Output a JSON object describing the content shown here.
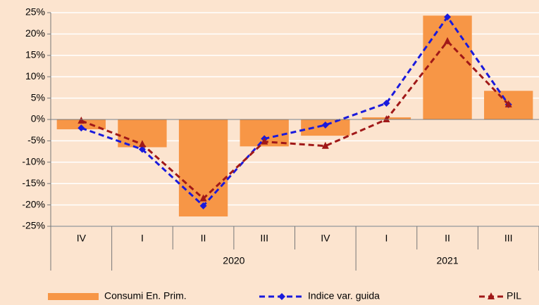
{
  "chart_data": {
    "type": "bar_line",
    "categories": [
      "IV",
      "I",
      "II",
      "III",
      "IV",
      "I",
      "II",
      "III"
    ],
    "category_groups": [
      {
        "label": "2020",
        "from": 1,
        "to": 4
      },
      {
        "label": "2021",
        "from": 5,
        "to": 7
      }
    ],
    "series": [
      {
        "name": "Consumi En. Prim.",
        "type": "bar",
        "color": "#f79646",
        "values": [
          -2.3,
          -6.5,
          -22.7,
          -6.3,
          -3.8,
          0.5,
          24.3,
          6.7
        ]
      },
      {
        "name": "Indice var. guida",
        "type": "line",
        "marker": "diamond",
        "color": "#1a1adc",
        "values": [
          -2,
          -7,
          -20.2,
          -4.5,
          -1.3,
          3.8,
          24,
          3.5
        ]
      },
      {
        "name": "PIL",
        "type": "line",
        "marker": "triangle",
        "color": "#a01818",
        "values": [
          -0.3,
          -5.8,
          -18.5,
          -5.2,
          -6.2,
          0,
          18.3,
          3.5
        ]
      }
    ],
    "ylim": [
      -25,
      25
    ],
    "yticks": [
      {
        "value": -25,
        "label": "-25%"
      },
      {
        "value": -20,
        "label": "-20%"
      },
      {
        "value": -15,
        "label": "-15%"
      },
      {
        "value": -10,
        "label": "-10%"
      },
      {
        "value": -5,
        "label": "-5%"
      },
      {
        "value": 0,
        "label": "0%"
      },
      {
        "value": 5,
        "label": "5%"
      },
      {
        "value": 10,
        "label": "10%"
      },
      {
        "value": 15,
        "label": "15%"
      },
      {
        "value": 20,
        "label": "20%"
      },
      {
        "value": 25,
        "label": "25%"
      }
    ],
    "grid": true,
    "legend": "bottom"
  }
}
